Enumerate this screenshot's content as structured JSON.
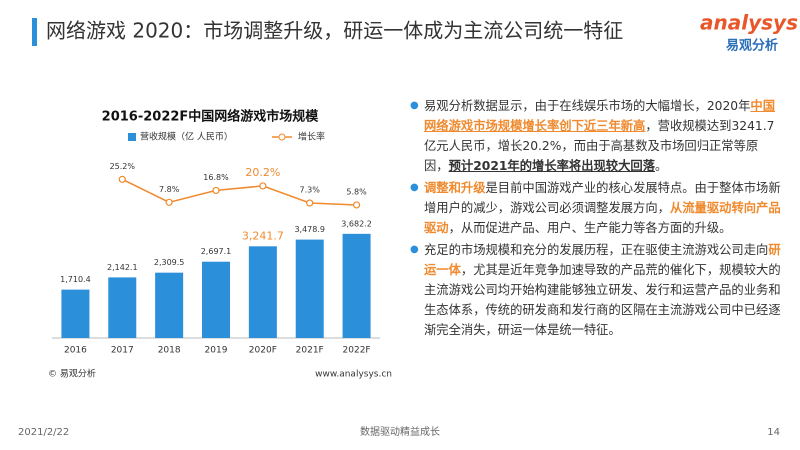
{
  "header": {
    "title": "网络游戏 2020：市场调整升级，研运一体成为主流公司统一特征"
  },
  "logo": {
    "text": "analysys",
    "subtitle": "易观分析"
  },
  "chart_data": {
    "type": "bar",
    "title": "2016-2022F中国网络游戏市场规模",
    "categories": [
      "2016",
      "2017",
      "2018",
      "2019",
      "2020F",
      "2021F",
      "2022F"
    ],
    "series": [
      {
        "name": "营收规模（亿 人民币）",
        "type": "bar",
        "color": "#2b8fd9",
        "values": [
          1710.4,
          2142.1,
          2309.5,
          2697.1,
          3241.7,
          3478.9,
          3682.2
        ],
        "value_labels": [
          "1,710.4",
          "2,142.1",
          "2,309.5",
          "2,697.1",
          "3,241.7",
          "3,478.9",
          "3,682.2"
        ],
        "label_colors": [
          "#333333",
          "#333333",
          "#333333",
          "#333333",
          "#f08a2e",
          "#333333",
          "#333333"
        ]
      },
      {
        "name": "增长率",
        "type": "line",
        "axis": "y2",
        "color": "#f08a2e",
        "values": [
          null,
          25.2,
          7.8,
          16.8,
          20.2,
          7.3,
          5.8
        ],
        "value_labels": [
          null,
          "25.2%",
          "7.8%",
          "16.8%",
          "20.2%",
          "7.3%",
          "5.8%"
        ],
        "label_colors": [
          "#333333",
          "#333333",
          "#333333",
          "#333333",
          "#f08a2e",
          "#333333",
          "#333333"
        ]
      }
    ],
    "ylim": [
      0,
      7000
    ],
    "y2lim": [
      -95,
      55
    ],
    "source": "© 易观分析",
    "url": "www.analysys.cn"
  },
  "bullets": [
    {
      "runs": [
        {
          "text": "易观分析数据显示，由于在线娱乐市场的大幅增长，2020年",
          "style": "plain"
        },
        {
          "text": "中国网络游戏市场规模增长率创下近三年新高",
          "style": "accent-underline"
        },
        {
          "text": "，营收规模达到3241.7亿元人民币，增长20.2%，而由于高基数及市场回归正常等原因，",
          "style": "plain"
        },
        {
          "text": "预计2021年的增长率将出现较大回落",
          "style": "bold-underline"
        },
        {
          "text": "。",
          "style": "plain"
        }
      ]
    },
    {
      "runs": [
        {
          "text": "调整和升级",
          "style": "accent"
        },
        {
          "text": "是目前中国游戏产业的核心发展特点。由于整体市场新增用户的减少，游戏公司必须调整发展方向，",
          "style": "plain"
        },
        {
          "text": "从流量驱动转向产品驱动",
          "style": "accent"
        },
        {
          "text": "，从而促进产品、用户、生产能力等各方面的升级。",
          "style": "plain"
        }
      ]
    },
    {
      "runs": [
        {
          "text": "充足的市场规模和充分的发展历程，正在驱使主流游戏公司走向",
          "style": "plain"
        },
        {
          "text": "研运一体",
          "style": "accent"
        },
        {
          "text": "，尤其是近年竞争加速导致的产品荒的催化下，规模较大的主流游戏公司均开始构建能够独立研发、发行和运营产品的业务和生态体系，传统的研发商和发行商的区隔在主流游戏公司中已经逐渐完全消失，研运一体是统一特征。",
          "style": "plain"
        }
      ]
    }
  ],
  "footer": {
    "date": "2021/2/22",
    "slogan": "数据驱动精益成长",
    "page": "14"
  }
}
